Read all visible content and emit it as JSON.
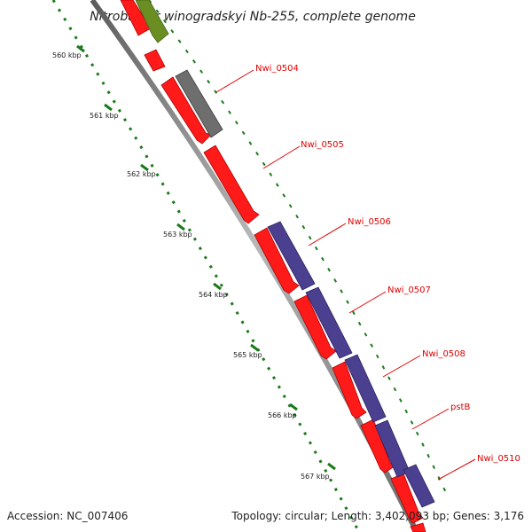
{
  "title": "Nitrobacter winogradskyi Nb-255, complete genome",
  "footer": {
    "accession": "Accession: NC_007406",
    "summary": "Topology: circular; Length: 3,402,093 bp; Genes: 3,176"
  },
  "ticks": [
    "560 kbp",
    "561 kbp",
    "562 kbp",
    "563 kbp",
    "564 kbp",
    "565 kbp",
    "566 kbp",
    "567 kbp"
  ],
  "gene_labels": [
    "Nwi_0504",
    "Nwi_0505",
    "Nwi_0506",
    "Nwi_0507",
    "Nwi_0508",
    "pstB",
    "Nwi_0510"
  ],
  "colors": {
    "backbone": "#8a8a8a",
    "cds_red": "#ff1a1a",
    "cds_blue": "#4b3f8f",
    "cds_gray": "#6e6e6e",
    "cds_green": "#6b8e23",
    "tick_green": "#1a7a1a",
    "label_red": "#e00000"
  }
}
